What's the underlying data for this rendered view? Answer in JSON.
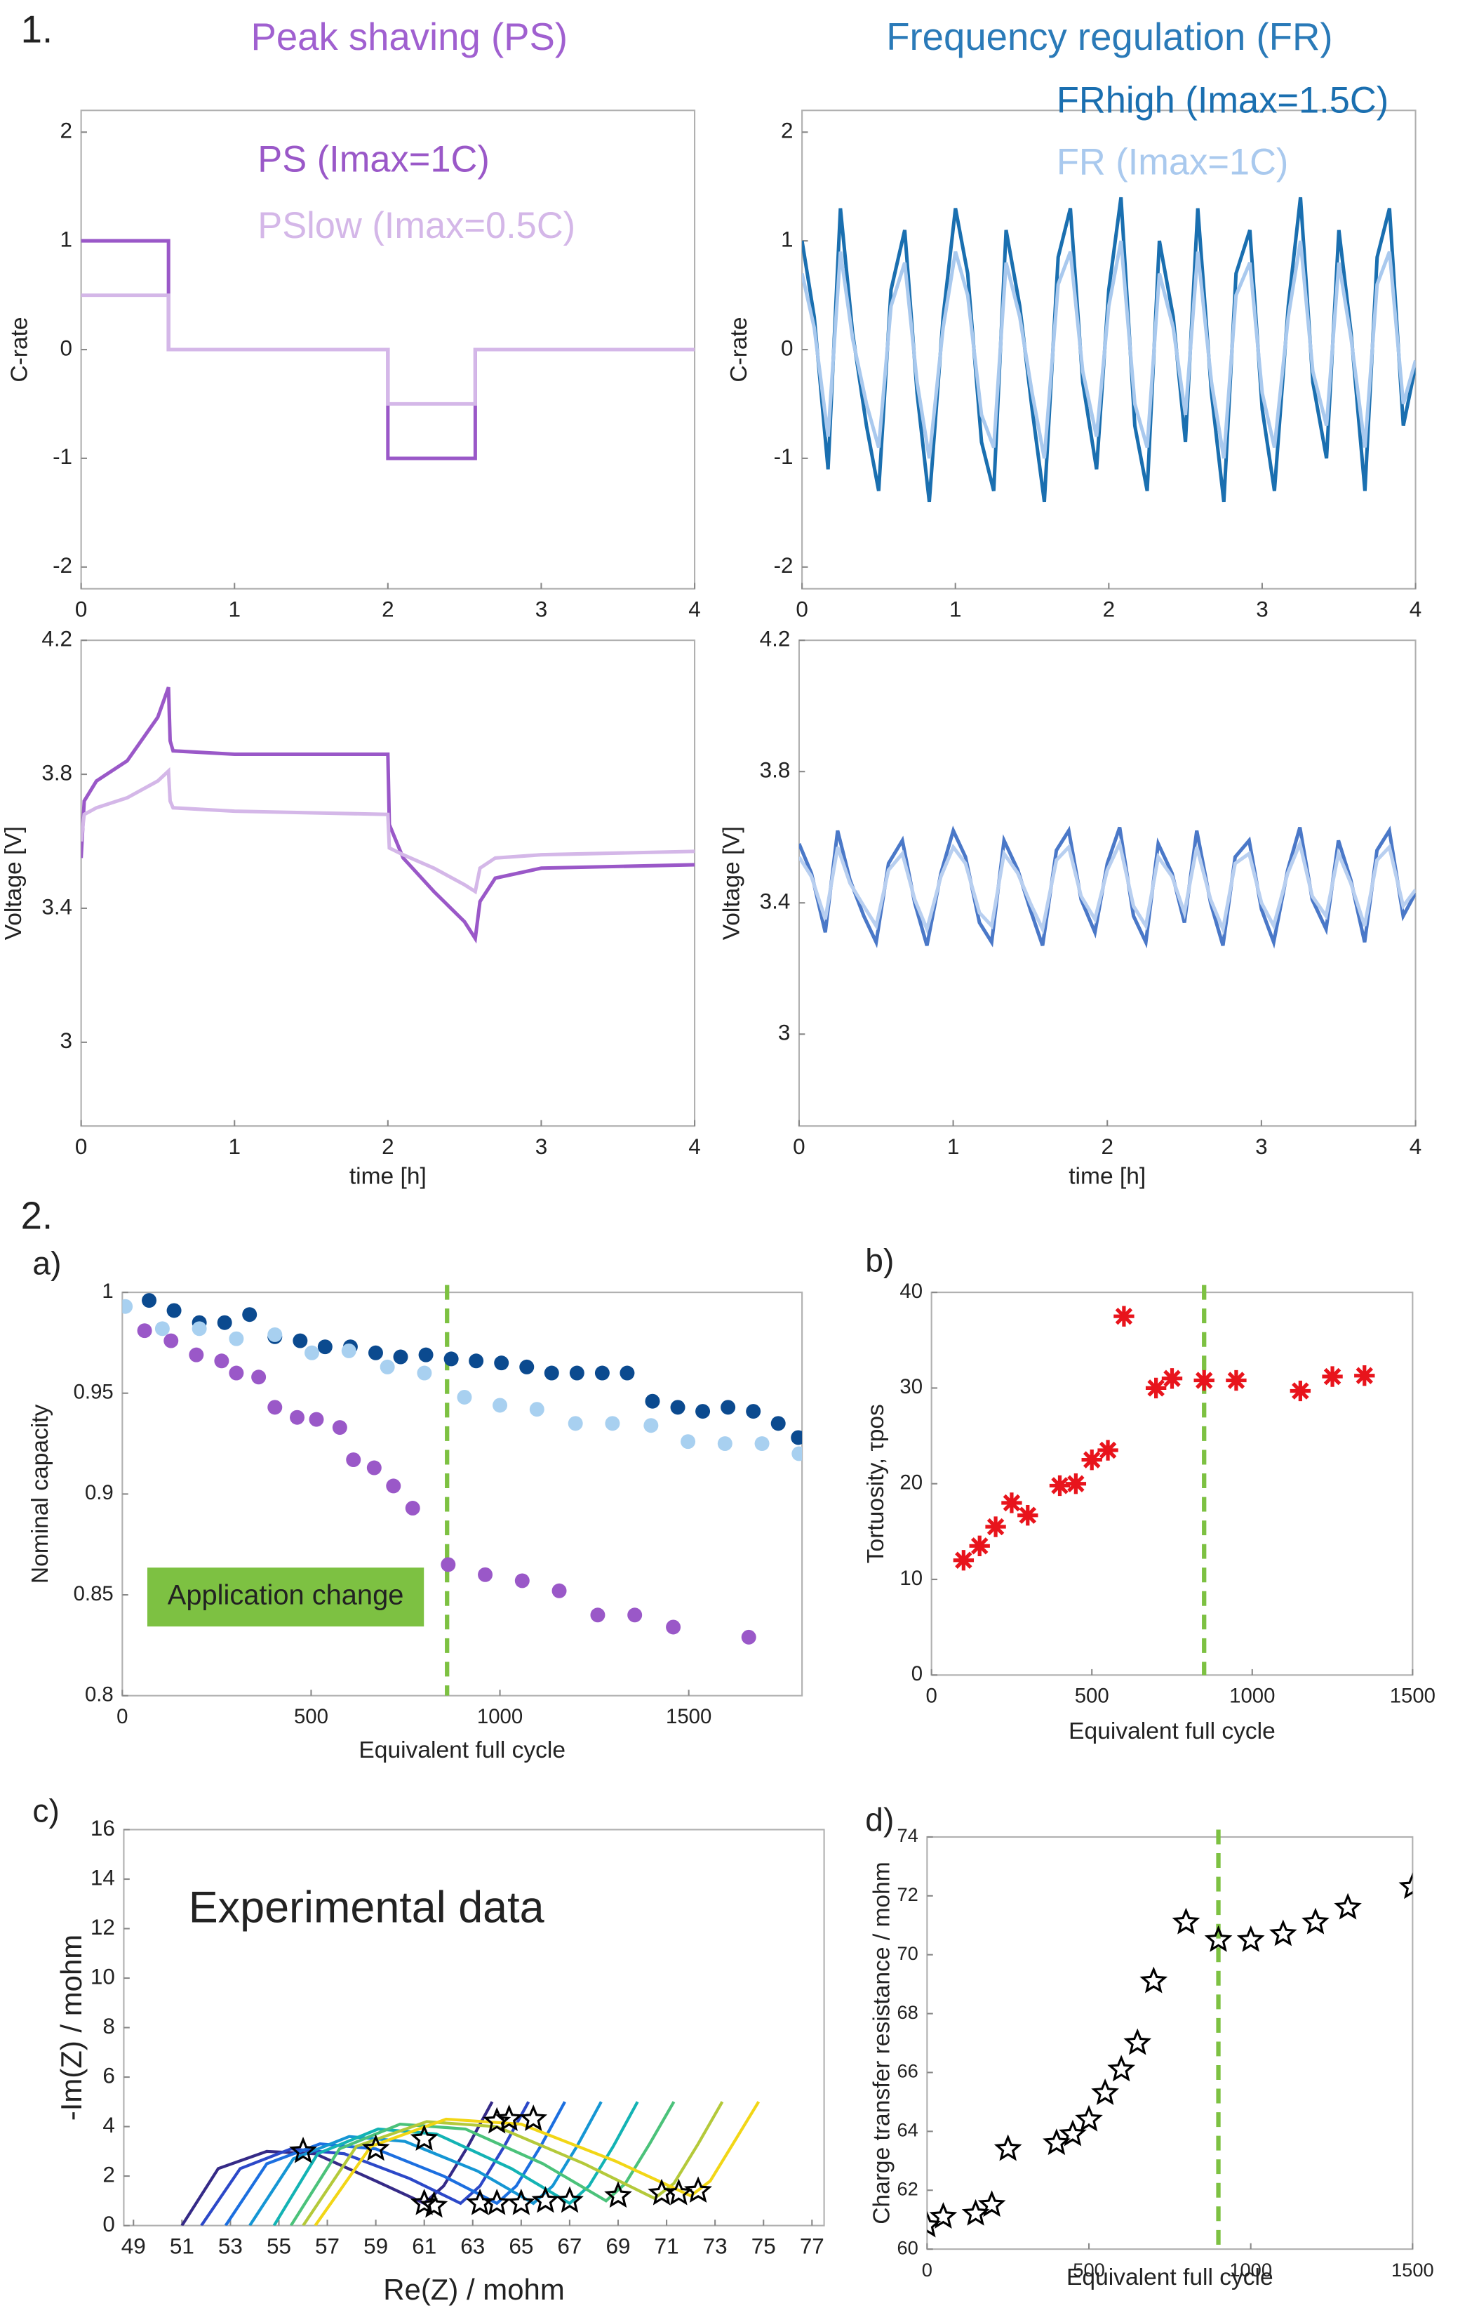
{
  "sections": [
    "1.",
    "2."
  ],
  "chart_data": [
    {
      "type": "line",
      "title": "Peak shaving (PS)",
      "title_color": "#a060d0",
      "ylabel": "C-rate",
      "x": [
        0,
        0.57,
        0.57,
        2,
        2,
        2.57,
        2.57,
        4
      ],
      "series": [
        {
          "name": "PS (Imax=1C)",
          "color": "#9a58c8",
          "values": [
            1,
            1,
            0,
            0,
            -1,
            -1,
            0,
            0
          ]
        },
        {
          "name": "PSlow (Imax=0.5C)",
          "color": "#d4b7e8",
          "values": [
            0.5,
            0.5,
            0,
            0,
            -0.5,
            -0.5,
            0,
            0
          ]
        }
      ],
      "xlim": [
        0,
        4
      ],
      "xticks": [
        0,
        1,
        2,
        3,
        4
      ],
      "ylim": [
        -2.2,
        2.2
      ],
      "yticks": [
        -2,
        -1,
        0,
        1,
        2
      ],
      "legend": "upper right"
    },
    {
      "type": "line",
      "title": "Frequency regulation (FR)",
      "title_color": "#2a7ab8",
      "ylabel": "C-rate",
      "x": [
        0,
        0.08,
        0.17,
        0.25,
        0.33,
        0.42,
        0.5,
        0.58,
        0.67,
        0.75,
        0.83,
        0.92,
        1,
        1.08,
        1.17,
        1.25,
        1.33,
        1.42,
        1.5,
        1.58,
        1.67,
        1.75,
        1.83,
        1.92,
        2,
        2.08,
        2.17,
        2.25,
        2.33,
        2.42,
        2.5,
        2.58,
        2.67,
        2.75,
        2.83,
        2.92,
        3,
        3.08,
        3.17,
        3.25,
        3.33,
        3.42,
        3.5,
        3.58,
        3.67,
        3.75,
        3.83,
        3.92,
        4
      ],
      "series": [
        {
          "name": "FRhigh (Imax=1.5C)",
          "color": "#1a6fb0",
          "values": [
            1.0,
            0.3,
            -1.1,
            1.3,
            0.15,
            -0.7,
            -1.3,
            0.55,
            1.1,
            -0.4,
            -1.4,
            0.3,
            1.3,
            0.7,
            -0.85,
            -1.3,
            1.1,
            0.4,
            -0.55,
            -1.4,
            0.85,
            1.3,
            -0.3,
            -1.1,
            0.55,
            1.4,
            -0.7,
            -1.3,
            1.0,
            0.3,
            -0.85,
            1.3,
            -0.4,
            -1.4,
            0.7,
            1.1,
            -0.55,
            -1.3,
            0.4,
            1.4,
            -0.3,
            -1.0,
            1.1,
            0.15,
            -1.3,
            0.85,
            1.3,
            -0.7,
            -0.15
          ]
        },
        {
          "name": "FR (Imax=1C)",
          "color": "#a9c9ee",
          "values": [
            0.7,
            0.2,
            -0.8,
            0.9,
            0.1,
            -0.5,
            -0.9,
            0.4,
            0.8,
            -0.3,
            -1.0,
            0.2,
            0.9,
            0.5,
            -0.6,
            -0.9,
            0.8,
            0.3,
            -0.4,
            -1.0,
            0.6,
            0.9,
            -0.2,
            -0.8,
            0.4,
            1.0,
            -0.5,
            -0.9,
            0.7,
            0.2,
            -0.6,
            0.9,
            -0.3,
            -1.0,
            0.5,
            0.8,
            -0.4,
            -0.9,
            0.3,
            1.0,
            -0.2,
            -0.7,
            0.8,
            0.1,
            -0.9,
            0.6,
            0.9,
            -0.5,
            -0.1
          ]
        }
      ],
      "xlim": [
        0,
        4
      ],
      "xticks": [
        0,
        1,
        2,
        3,
        4
      ],
      "ylim": [
        -2.2,
        2.2
      ],
      "yticks": [
        -2,
        -1,
        0,
        1,
        2
      ],
      "legend": "upper right"
    },
    {
      "type": "line",
      "xlabel": "time [h]",
      "ylabel": "Voltage [V]",
      "x": [
        0,
        0.02,
        0.1,
        0.3,
        0.5,
        0.57,
        0.58,
        0.6,
        1,
        2,
        2.01,
        2.1,
        2.3,
        2.5,
        2.57,
        2.6,
        2.7,
        3,
        4
      ],
      "series": [
        {
          "color": "#9a58c8",
          "values": [
            3.55,
            3.72,
            3.78,
            3.84,
            3.97,
            4.06,
            3.9,
            3.87,
            3.86,
            3.86,
            3.65,
            3.55,
            3.45,
            3.36,
            3.31,
            3.42,
            3.49,
            3.52,
            3.53
          ]
        },
        {
          "color": "#d4b7e8",
          "values": [
            3.6,
            3.68,
            3.7,
            3.73,
            3.78,
            3.81,
            3.72,
            3.7,
            3.69,
            3.68,
            3.58,
            3.56,
            3.52,
            3.47,
            3.45,
            3.52,
            3.55,
            3.56,
            3.57
          ]
        }
      ],
      "xlim": [
        0,
        4
      ],
      "xticks": [
        0,
        1,
        2,
        3,
        4
      ],
      "ylim": [
        2.75,
        4.2
      ],
      "yticks": [
        3,
        3.4,
        3.8,
        4.2
      ]
    },
    {
      "type": "line",
      "xlabel": "time [h]",
      "ylabel": "Voltage [V]",
      "x": [
        0,
        0.08,
        0.17,
        0.25,
        0.33,
        0.42,
        0.5,
        0.58,
        0.67,
        0.75,
        0.83,
        0.92,
        1,
        1.08,
        1.17,
        1.25,
        1.33,
        1.42,
        1.5,
        1.58,
        1.67,
        1.75,
        1.83,
        1.92,
        2,
        2.08,
        2.17,
        2.25,
        2.33,
        2.42,
        2.5,
        2.58,
        2.67,
        2.75,
        2.83,
        2.92,
        3,
        3.08,
        3.17,
        3.25,
        3.33,
        3.42,
        3.5,
        3.58,
        3.67,
        3.75,
        3.83,
        3.92,
        4
      ],
      "series": [
        {
          "color": "#4a78c8",
          "values": [
            3.58,
            3.49,
            3.31,
            3.62,
            3.47,
            3.36,
            3.28,
            3.52,
            3.59,
            3.4,
            3.27,
            3.49,
            3.62,
            3.54,
            3.34,
            3.28,
            3.59,
            3.5,
            3.38,
            3.27,
            3.56,
            3.62,
            3.41,
            3.31,
            3.52,
            3.63,
            3.36,
            3.28,
            3.58,
            3.49,
            3.34,
            3.62,
            3.4,
            3.27,
            3.54,
            3.59,
            3.38,
            3.28,
            3.5,
            3.63,
            3.41,
            3.32,
            3.59,
            3.47,
            3.28,
            3.56,
            3.62,
            3.36,
            3.43
          ]
        },
        {
          "color": "#b8cff0",
          "values": [
            3.54,
            3.48,
            3.35,
            3.57,
            3.46,
            3.39,
            3.33,
            3.5,
            3.55,
            3.41,
            3.32,
            3.48,
            3.57,
            3.52,
            3.37,
            3.33,
            3.55,
            3.49,
            3.4,
            3.32,
            3.53,
            3.57,
            3.42,
            3.35,
            3.5,
            3.58,
            3.39,
            3.33,
            3.54,
            3.48,
            3.37,
            3.57,
            3.41,
            3.32,
            3.52,
            3.55,
            3.4,
            3.33,
            3.49,
            3.58,
            3.42,
            3.36,
            3.55,
            3.46,
            3.33,
            3.53,
            3.57,
            3.39,
            3.44
          ]
        }
      ],
      "xlim": [
        0,
        4
      ],
      "xticks": [
        0,
        1,
        2,
        3,
        4
      ],
      "ylim": [
        2.72,
        4.2
      ],
      "yticks": [
        3,
        3.4,
        3.8,
        4.2
      ]
    },
    {
      "type": "scatter",
      "label": "a)",
      "xlabel": "Equivalent full cycle",
      "ylabel": "Nominal capacity",
      "annotation": "Application change",
      "vline": 860,
      "series": [
        {
          "color": "#0b4a8f",
          "marker": "circle",
          "x": [
            71,
            137,
            204,
            271,
            337,
            404,
            471,
            537,
            604,
            671,
            737,
            804,
            871,
            937,
            1004,
            1071,
            1137,
            1204,
            1271,
            1337,
            1404,
            1471,
            1537,
            1604,
            1671,
            1737,
            1790
          ],
          "values": [
            0.996,
            0.991,
            0.985,
            0.985,
            0.989,
            0.978,
            0.976,
            0.973,
            0.973,
            0.97,
            0.968,
            0.969,
            0.967,
            0.966,
            0.965,
            0.963,
            0.96,
            0.96,
            0.96,
            0.96,
            0.946,
            0.943,
            0.941,
            0.943,
            0.941,
            0.935,
            0.928
          ]
        },
        {
          "color": "#a8d0f0",
          "marker": "circle",
          "x": [
            8,
            106,
            204,
            302,
            404,
            502,
            600,
            702,
            800,
            906,
            1000,
            1098,
            1200,
            1298,
            1400,
            1498,
            1596,
            1694,
            1792
          ],
          "values": [
            0.993,
            0.982,
            0.982,
            0.977,
            0.979,
            0.97,
            0.971,
            0.963,
            0.96,
            0.948,
            0.944,
            0.942,
            0.935,
            0.935,
            0.934,
            0.926,
            0.925,
            0.925,
            0.92
          ]
        },
        {
          "color": "#9a58c8",
          "marker": "circle",
          "x": [
            59,
            129,
            196,
            263,
            302,
            361,
            404,
            463,
            514,
            576,
            612,
            667,
            718,
            769,
            863,
            961,
            1059,
            1157,
            1259,
            1357,
            1459,
            1659
          ],
          "values": [
            0.981,
            0.976,
            0.969,
            0.966,
            0.96,
            0.958,
            0.943,
            0.938,
            0.937,
            0.933,
            0.917,
            0.913,
            0.904,
            0.893,
            0.865,
            0.86,
            0.857,
            0.852,
            0.84,
            0.84,
            0.834,
            0.829
          ]
        }
      ],
      "xlim": [
        0,
        1800
      ],
      "xticks": [
        0,
        500,
        1000,
        1500
      ],
      "ylim": [
        0.8,
        1
      ],
      "yticks": [
        0.8,
        0.85,
        0.9,
        0.95,
        1
      ]
    },
    {
      "type": "scatter",
      "label": "b)",
      "xlabel": "Equivalent full cycle",
      "ylabel": "Tortuosity, τpos",
      "vline": 850,
      "series": [
        {
          "color": "#e8141c",
          "marker": "asterisk",
          "x": [
            100,
            150,
            200,
            250,
            300,
            400,
            450,
            500,
            550,
            600,
            700,
            750,
            850,
            950,
            1150,
            1250,
            1350
          ],
          "values": [
            12,
            13.5,
            15.5,
            18,
            16.7,
            19.8,
            20,
            22.5,
            23.5,
            37.5,
            30,
            31,
            30.8,
            30.8,
            29.7,
            31.2,
            31.3
          ]
        }
      ],
      "xlim": [
        0,
        1500
      ],
      "xticks": [
        0,
        500,
        1000,
        1500
      ],
      "ylim": [
        0,
        40
      ],
      "yticks": [
        0,
        10,
        20,
        30,
        40
      ]
    },
    {
      "type": "line",
      "label": "c)",
      "xlabel": "Re(Z) / mohm",
      "ylabel": "-Im(Z) / mohm",
      "annotation": "Experimental data",
      "series": [
        {
          "color": "#352a87",
          "x": [
            51,
            52.5,
            54.5,
            56.5,
            59,
            61,
            61.8,
            62.8,
            63.8
          ],
          "values": [
            0,
            2.3,
            3.0,
            2.9,
            1.8,
            0.9,
            1.6,
            3.2,
            5.0
          ]
        },
        {
          "color": "#2c48c8",
          "x": [
            51.8,
            53.4,
            55.5,
            57.7,
            60.4,
            62.5,
            63.3,
            64.3,
            65.3
          ],
          "values": [
            0,
            2.3,
            3.1,
            2.9,
            1.9,
            0.9,
            1.6,
            3.2,
            5.0
          ]
        },
        {
          "color": "#1c6fe0",
          "x": [
            52.8,
            54.5,
            56.7,
            59,
            61.8,
            64,
            64.8,
            65.8,
            66.8
          ],
          "values": [
            0,
            2.5,
            3.3,
            3.1,
            2.0,
            0.9,
            1.6,
            3.2,
            5.0
          ]
        },
        {
          "color": "#1596d4",
          "x": [
            53.8,
            55.6,
            57.9,
            60.2,
            63.2,
            65.5,
            66.3,
            67.3,
            68.3
          ],
          "values": [
            0,
            2.7,
            3.6,
            3.4,
            2.2,
            0.9,
            1.6,
            3.2,
            5.0
          ]
        },
        {
          "color": "#13b3b4",
          "x": [
            54.8,
            56.6,
            59.1,
            61.5,
            64.6,
            67,
            67.8,
            68.8,
            69.8
          ],
          "values": [
            0,
            2.9,
            3.9,
            3.7,
            2.3,
            0.9,
            1.6,
            3.2,
            5.0
          ]
        },
        {
          "color": "#4bc27a",
          "x": [
            55.5,
            57.5,
            60,
            62.7,
            65.9,
            68.5,
            69.3,
            70.3,
            71.3
          ],
          "values": [
            0,
            3.1,
            4.1,
            3.9,
            2.5,
            1.0,
            1.7,
            3.3,
            5.0
          ]
        },
        {
          "color": "#b4c93a",
          "x": [
            56,
            58.2,
            61.1,
            64,
            67.6,
            70.5,
            71.3,
            72.3,
            73.3
          ],
          "values": [
            0,
            3.2,
            4.2,
            4.0,
            2.5,
            1.1,
            1.7,
            3.3,
            5.0
          ]
        },
        {
          "color": "#f2d616",
          "x": [
            56.5,
            58.8,
            61.9,
            65,
            68.9,
            72,
            72.8,
            73.8,
            74.8
          ],
          "values": [
            0,
            3.2,
            4.3,
            4.1,
            2.6,
            1.2,
            1.8,
            3.4,
            5.0
          ]
        },
        {
          "color": "#000000",
          "marker": "star",
          "x": [
            61,
            61.4,
            63.3,
            64,
            65,
            66,
            67,
            69,
            70.8,
            71.5,
            72.3,
            56,
            59,
            61,
            64,
            64.5,
            65.5
          ],
          "values": [
            0.9,
            0.8,
            0.9,
            0.9,
            0.9,
            1.0,
            1.0,
            1.2,
            1.3,
            1.3,
            1.4,
            3.0,
            3.1,
            3.5,
            4.2,
            4.3,
            4.3
          ]
        }
      ],
      "xlim": [
        48.6,
        77.5
      ],
      "xticks": [
        49,
        51,
        53,
        55,
        57,
        59,
        61,
        63,
        65,
        67,
        69,
        71,
        73,
        75,
        77
      ],
      "ylim": [
        0,
        16
      ],
      "yticks": [
        0,
        2,
        4,
        6,
        8,
        10,
        12,
        14,
        16
      ]
    },
    {
      "type": "scatter",
      "label": "d)",
      "xlabel": "Equivalent full cycle",
      "ylabel": "Charge transfer resistance / mohm",
      "vline": 900,
      "series": [
        {
          "color": "#000000",
          "marker": "star",
          "x": [
            0,
            50,
            150,
            200,
            250,
            400,
            450,
            500,
            550,
            600,
            650,
            700,
            800,
            900,
            1000,
            1100,
            1200,
            1300,
            1500
          ],
          "values": [
            60.8,
            61.1,
            61.2,
            61.5,
            63.4,
            63.6,
            63.9,
            64.4,
            65.3,
            66.1,
            67,
            69.1,
            71.1,
            70.5,
            70.5,
            70.7,
            71.1,
            71.6,
            72.3
          ]
        }
      ],
      "xlim": [
        0,
        1500
      ],
      "xticks": [
        0,
        500,
        1000,
        1500
      ],
      "ylim": [
        60,
        74
      ],
      "yticks": [
        60,
        62,
        64,
        66,
        68,
        70,
        72,
        74
      ]
    }
  ]
}
